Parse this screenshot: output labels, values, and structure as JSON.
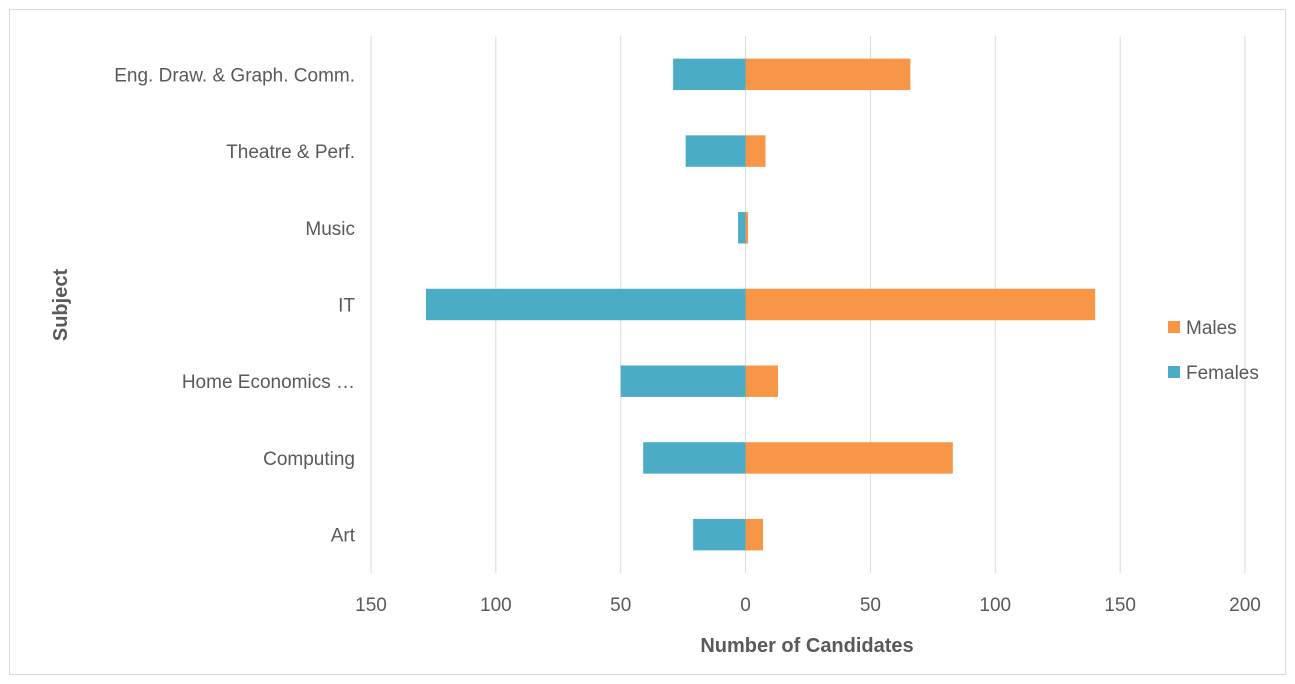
{
  "chart_data": {
    "type": "bar",
    "orientation": "horizontal",
    "stacking": "diverging",
    "categories": [
      "Eng. Draw. & Graph. Comm.",
      "Theatre & Perf.",
      "Music",
      "IT",
      "Home Economics …",
      "Computing",
      "Art"
    ],
    "series": [
      {
        "name": "Males",
        "color": "#f79646",
        "values": [
          66,
          8,
          1,
          140,
          13,
          83,
          7
        ]
      },
      {
        "name": "Females",
        "color": "#4bacc6",
        "values": [
          -29,
          -24,
          -3,
          -128,
          -50,
          -41,
          -21
        ]
      }
    ],
    "xlabel": "Number of Candidates",
    "ylabel": "Subject",
    "xlim": [
      -150,
      200
    ],
    "xticks": [
      -150,
      -100,
      -50,
      0,
      50,
      100,
      150,
      200
    ],
    "xtick_labels": [
      "150",
      "100",
      "50",
      "0",
      "50",
      "100",
      "150",
      "200"
    ],
    "grid": true,
    "legend_position": "right"
  }
}
